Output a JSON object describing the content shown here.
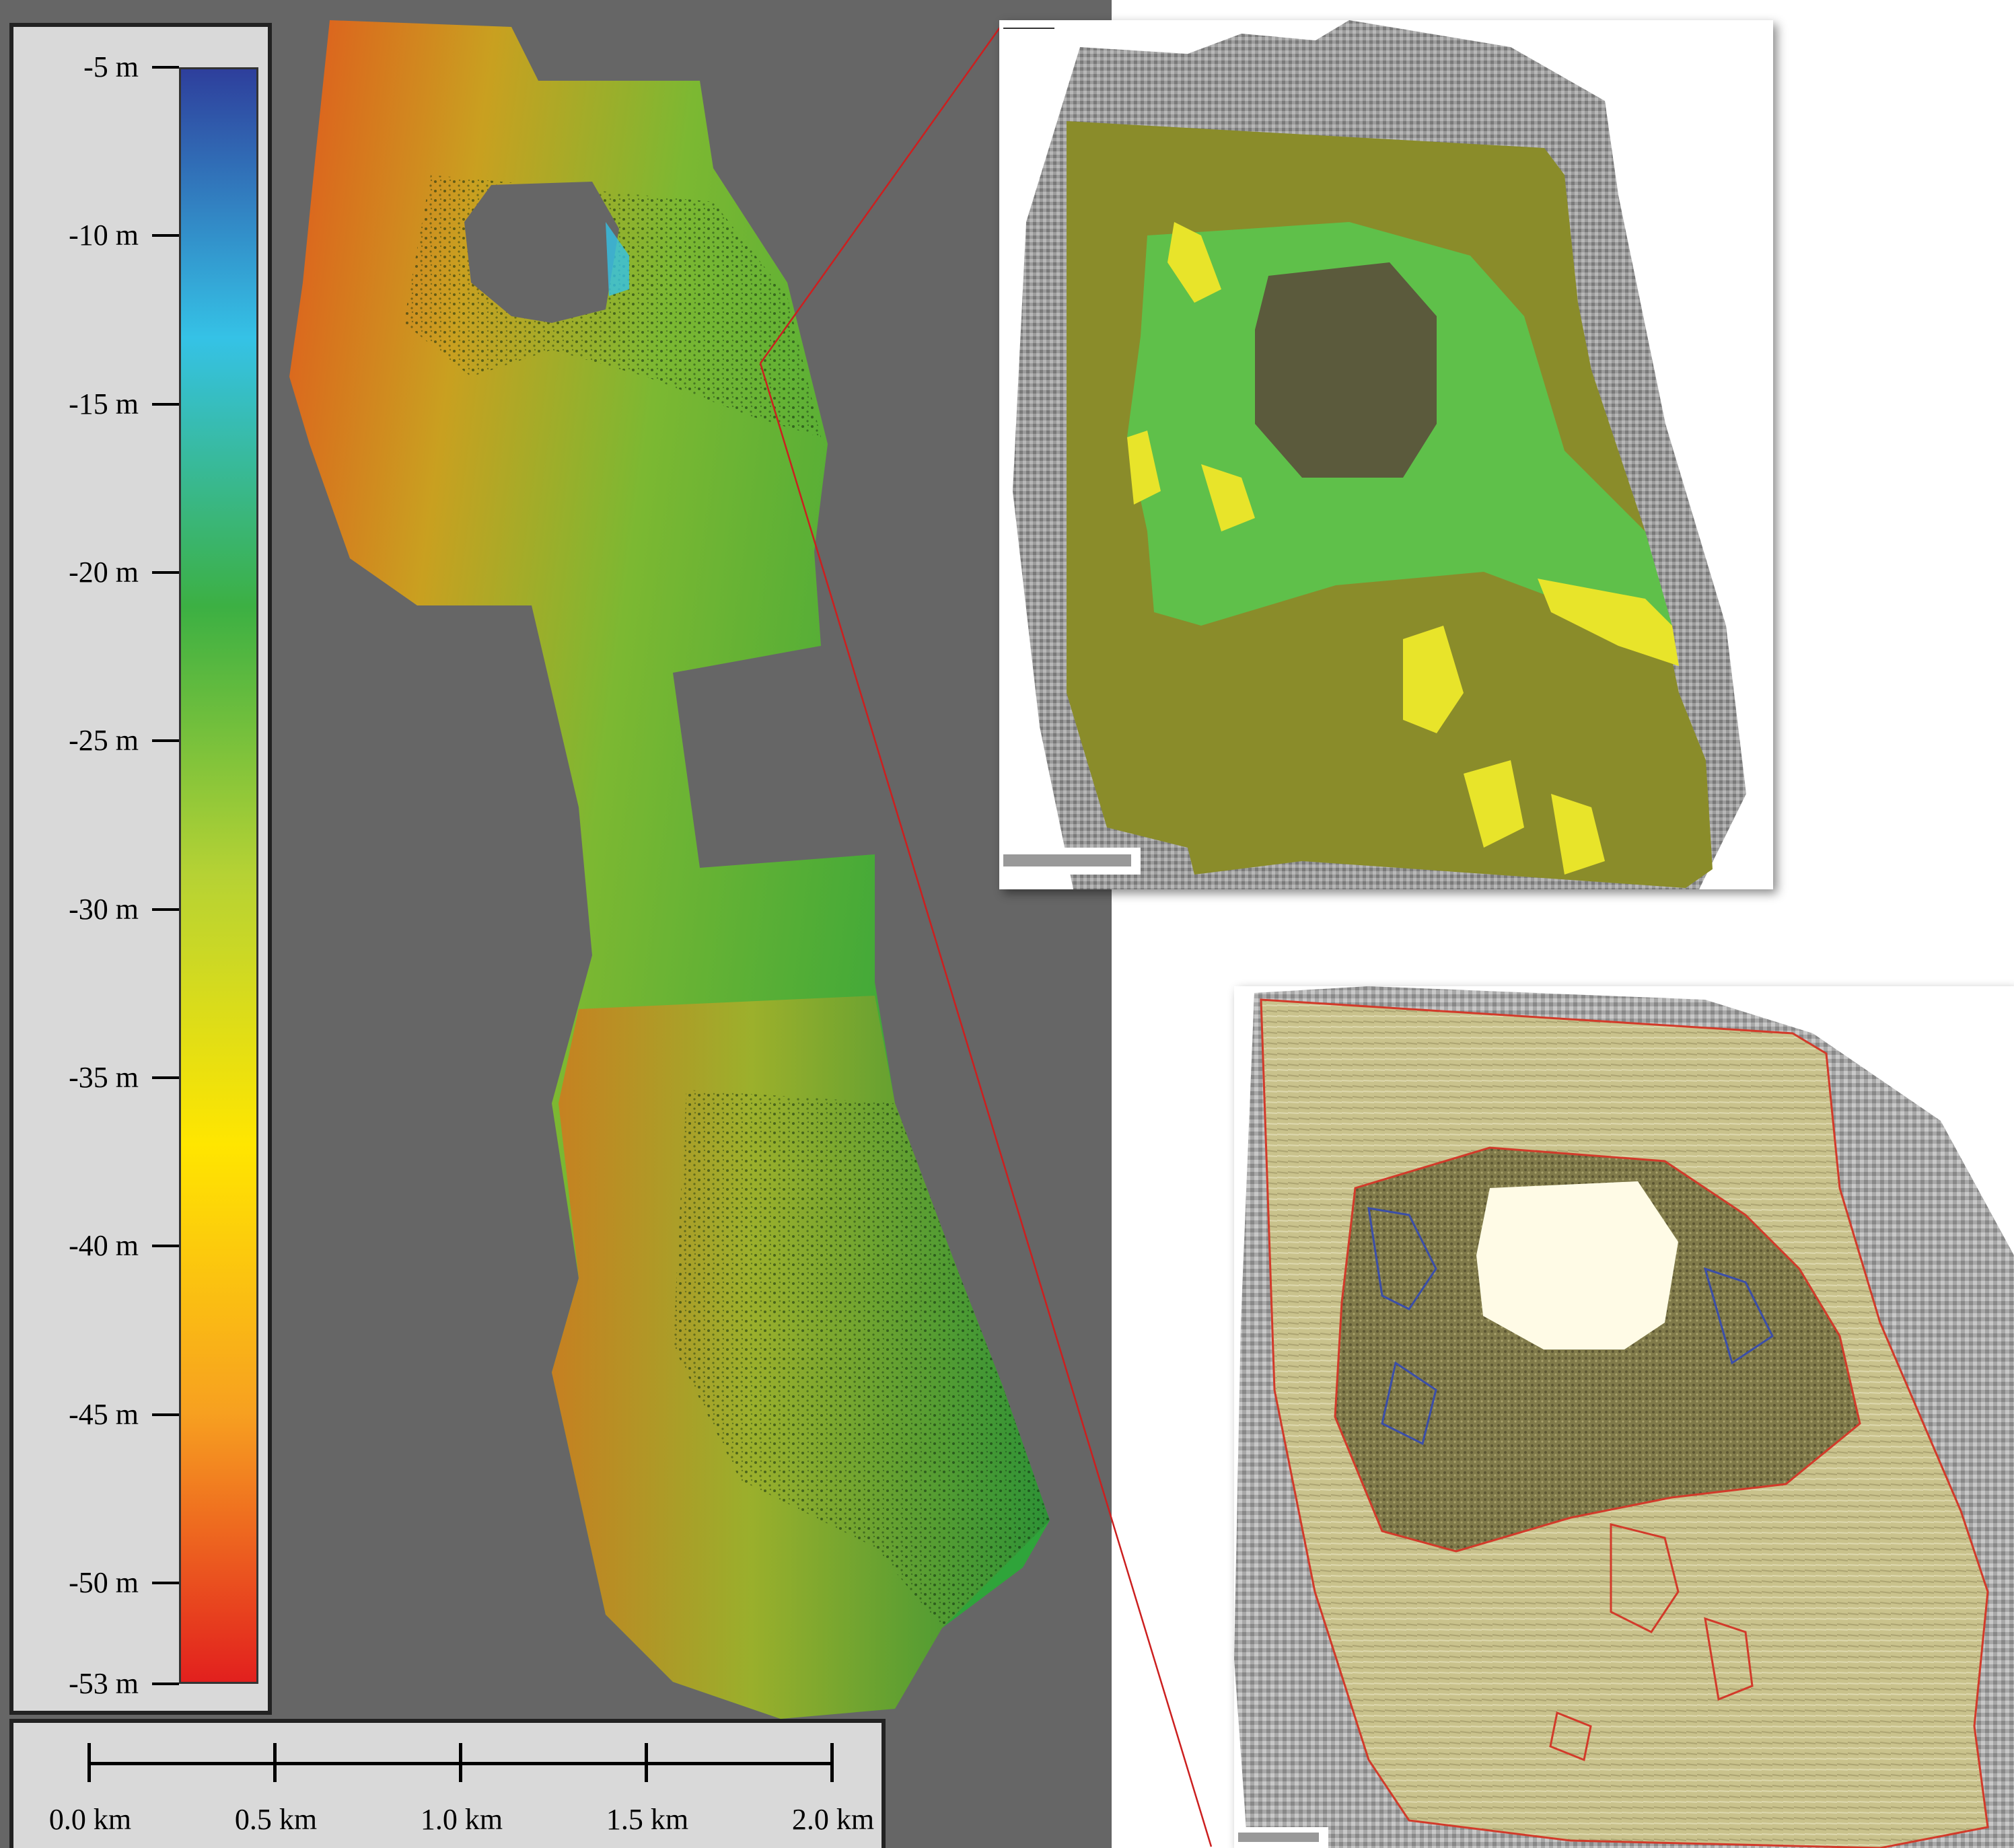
{
  "legend": {
    "title": "",
    "colors": [
      "#2e3f9c",
      "#35c2e6",
      "#3cb043",
      "#b6d234",
      "#ffe600",
      "#f7a020",
      "#e2201e"
    ],
    "labels": [
      "-5 m",
      "-10 m",
      "-15 m",
      "-20 m",
      "-25 m",
      "-30 m",
      "-35 m",
      "-40 m",
      "-45 m",
      "-50 m",
      "-53 m"
    ],
    "values": [
      -5,
      -10,
      -15,
      -20,
      -25,
      -30,
      -35,
      -40,
      -45,
      -50,
      -53
    ]
  },
  "scale_bar": {
    "labels": [
      "0.0 km",
      "0.5 km",
      "1.0 km",
      "1.5 km",
      "2.0 km"
    ],
    "values_km": [
      0.0,
      0.5,
      1.0,
      1.5,
      2.0
    ]
  },
  "colors": {
    "background": "#666666",
    "bathymetry_green": "#3cb043",
    "class_olive": "#8a8c2a",
    "class_green": "#5fc04a",
    "class_yellow": "#e8e42a",
    "crater_dark": "#5b5a3c",
    "outline_red": "#d23a2a",
    "outline_blue": "#3b4ea8",
    "crater_fill_light": "#fffbe6"
  }
}
